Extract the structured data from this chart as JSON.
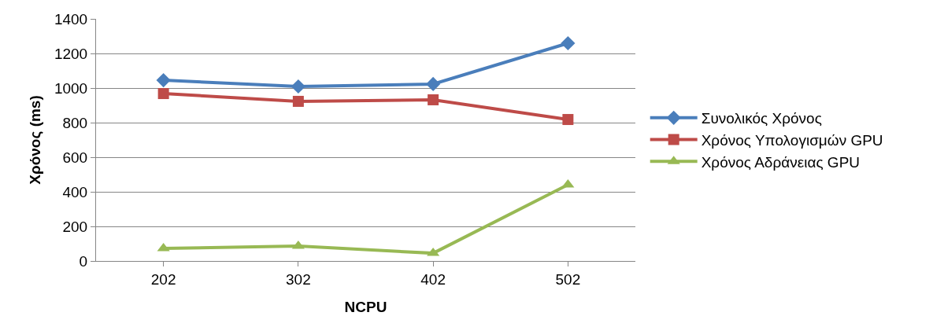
{
  "chart_data": {
    "type": "line",
    "xlabel": "NCPU",
    "ylabel": "Χρόνος (ms)",
    "categories": [
      "202",
      "302",
      "402",
      "502"
    ],
    "series": [
      {
        "name": "Συνολικός Χρόνος",
        "color": "#4a7ebb",
        "values": [
          1045,
          1009,
          1023,
          1259
        ],
        "marker": "diamond"
      },
      {
        "name": "Χρόνος Υπολογισμών GPU",
        "color": "#be4b48",
        "values": [
          968,
          923,
          932,
          818
        ],
        "marker": "square"
      },
      {
        "name": "Χρόνος Αδράνειας GPU",
        "color": "#98b954",
        "values": [
          73,
          86,
          45,
          441
        ],
        "marker": "triangle"
      }
    ],
    "ylim": [
      0,
      1400
    ],
    "yticks": [
      0,
      200,
      400,
      600,
      800,
      1000,
      1200,
      1400
    ],
    "grid": "y",
    "legend": "right",
    "line_style": "solid"
  }
}
